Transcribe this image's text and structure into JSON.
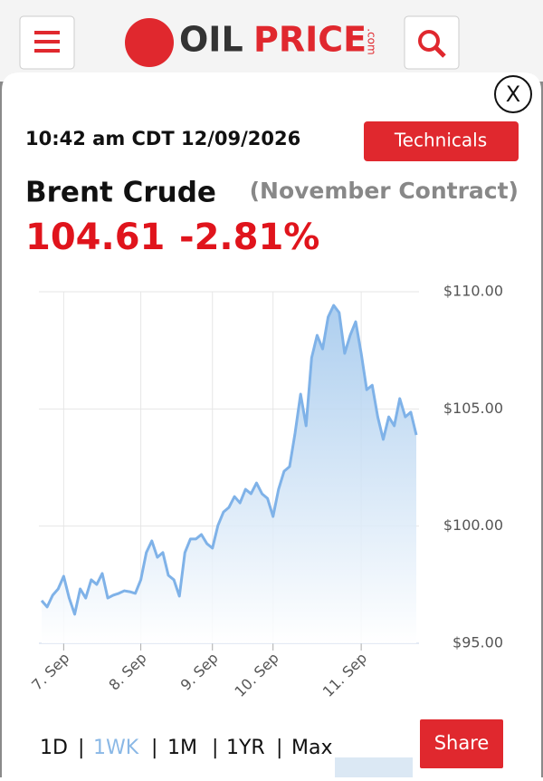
{
  "header": {
    "logo_left": "OIL",
    "logo_right": "PRICE",
    "logo_suffix": ".com"
  },
  "modal": {
    "close": "X",
    "timestamp": "10:42 am CDT 12/09/2026",
    "technicals": "Technicals",
    "name": "Brent Crude",
    "contract": "(November Contract)",
    "price": "104.61",
    "change": "-2.81%",
    "ranges": [
      "1D",
      "1WK",
      "1M",
      "1YR",
      "Max"
    ],
    "separator": "|",
    "active_range": 1,
    "share": "Share"
  },
  "chart_data": {
    "type": "area",
    "color": "#7fb2e8",
    "grid": true,
    "categories": [
      null,
      null,
      null,
      null,
      "7. Sep",
      null,
      null,
      null,
      null,
      null,
      null,
      null,
      null,
      null,
      null,
      null,
      null,
      null,
      "8. Sep",
      null,
      null,
      null,
      null,
      null,
      null,
      null,
      null,
      null,
      null,
      null,
      null,
      "9. Sep",
      null,
      null,
      null,
      null,
      null,
      null,
      null,
      null,
      null,
      null,
      "10. Sep",
      null,
      null,
      null,
      null,
      null,
      null,
      null,
      null,
      null,
      null,
      null,
      null,
      null,
      null,
      null,
      "11. Sep",
      null,
      null,
      null,
      null,
      null,
      null,
      null,
      null,
      null,
      null
    ],
    "values": [
      96.82,
      96.55,
      97.05,
      97.32,
      97.86,
      96.93,
      96.24,
      97.32,
      96.93,
      97.71,
      97.51,
      97.98,
      96.93,
      97.05,
      97.13,
      97.24,
      97.2,
      97.13,
      97.71,
      98.87,
      99.37,
      98.67,
      98.87,
      97.9,
      97.71,
      97.01,
      98.87,
      99.45,
      99.45,
      99.64,
      99.25,
      99.06,
      100.03,
      100.6,
      100.8,
      101.26,
      100.99,
      101.57,
      101.38,
      101.84,
      101.38,
      101.18,
      100.41,
      101.57,
      102.34,
      102.54,
      103.97,
      105.63,
      104.28,
      107.18,
      108.14,
      107.56,
      108.92,
      109.42,
      109.11,
      107.37,
      108.14,
      108.72,
      107.37,
      105.82,
      106.01,
      104.66,
      103.7,
      104.66,
      104.28,
      105.44,
      104.66,
      104.86,
      103.89
    ],
    "ylim": [
      95,
      110
    ],
    "yticks": [
      {
        "value": 95,
        "label": "$95.00"
      },
      {
        "value": 100,
        "label": "$100.00"
      },
      {
        "value": 105,
        "label": "$105.00"
      },
      {
        "value": 110,
        "label": "$110.00"
      }
    ]
  }
}
